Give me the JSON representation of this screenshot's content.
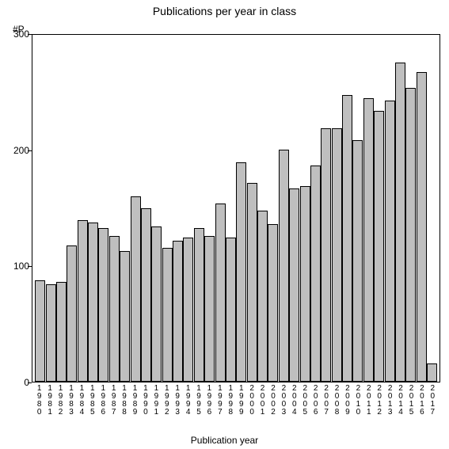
{
  "chart": {
    "type": "bar",
    "title": "Publications per year in class",
    "title_fontsize": 14,
    "y_axis_title": "#P",
    "x_axis_title": "Publication year",
    "label_fontsize": 12,
    "tick_fontsize": 12,
    "x_tick_fontsize": 10,
    "ylim": [
      0,
      300
    ],
    "yticks": [
      0,
      100,
      200,
      300
    ],
    "background_color": "#ffffff",
    "bar_fill_color": "#bfbfbf",
    "bar_border_color": "#000000",
    "axis_color": "#000000",
    "text_color": "#000000",
    "categories": [
      "1980",
      "1981",
      "1982",
      "1983",
      "1984",
      "1985",
      "1986",
      "1987",
      "1988",
      "1989",
      "1990",
      "1991",
      "1992",
      "1993",
      "1994",
      "1995",
      "1996",
      "1997",
      "1998",
      "1999",
      "2000",
      "2001",
      "2002",
      "2003",
      "2004",
      "2005",
      "2006",
      "2007",
      "2008",
      "2009",
      "2010",
      "2011",
      "2012",
      "2013",
      "2014",
      "2015",
      "2016",
      "2017"
    ],
    "values": [
      88,
      84,
      86,
      118,
      140,
      138,
      133,
      126,
      113,
      160,
      150,
      134,
      116,
      122,
      125,
      133,
      126,
      154,
      125,
      190,
      172,
      148,
      136,
      201,
      167,
      169,
      187,
      219,
      219,
      248,
      209,
      245,
      234,
      243,
      276,
      254,
      268,
      16
    ]
  }
}
